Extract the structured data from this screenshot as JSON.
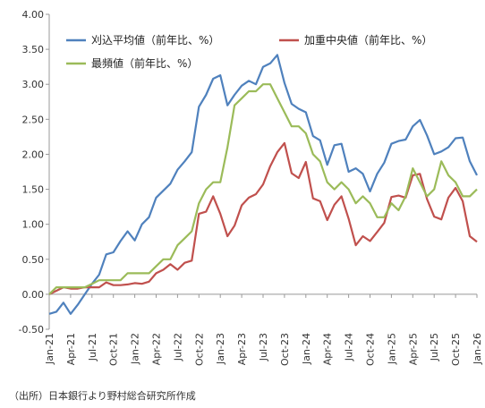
{
  "chart_data": {
    "type": "line",
    "x": [
      "Jan-21",
      "Feb-21",
      "Mar-21",
      "Apr-21",
      "May-21",
      "Jun-21",
      "Jul-21",
      "Aug-21",
      "Sep-21",
      "Oct-21",
      "Nov-21",
      "Dec-21",
      "Jan-22",
      "Feb-22",
      "Mar-22",
      "Apr-22",
      "May-22",
      "Jun-22",
      "Jul-22",
      "Aug-22",
      "Sep-22",
      "Oct-22",
      "Nov-22",
      "Dec-22",
      "Jan-23",
      "Feb-23",
      "Mar-23",
      "Apr-23",
      "May-23",
      "Jun-23",
      "Jul-23",
      "Aug-23",
      "Sep-23",
      "Oct-23",
      "Nov-23",
      "Dec-23",
      "Jan-24",
      "Feb-24",
      "Mar-24",
      "Apr-24",
      "May-24",
      "Jun-24",
      "Jul-24",
      "Aug-24",
      "Sep-24",
      "Oct-24",
      "Nov-24",
      "Dec-24",
      "Jan-25",
      "Feb-25",
      "Mar-25",
      "Apr-25",
      "May-25",
      "Jun-25",
      "Jul-25",
      "Aug-25",
      "Sep-25",
      "Oct-25",
      "Nov-25",
      "Dec-25",
      "Jan-26"
    ],
    "x_tick_labels": [
      "Jan-21",
      "Apr-21",
      "Jul-21",
      "Oct-21",
      "Jan-22",
      "Apr-22",
      "Jul-22",
      "Oct-22",
      "Jan-23",
      "Apr-23",
      "Jul-23",
      "Oct-23",
      "Jan-24",
      "Apr-24",
      "Jul-24",
      "Oct-24",
      "Jan-25",
      "Apr-25",
      "Jul-25",
      "Oct-25",
      "Jan-26"
    ],
    "ylim": [
      -0.5,
      4.0
    ],
    "y_ticks": [
      "-0.50",
      "0.00",
      "0.50",
      "1.00",
      "1.50",
      "2.00",
      "2.50",
      "3.00",
      "3.50",
      "4.00"
    ],
    "y_tick_values": [
      -0.5,
      0,
      0.5,
      1.0,
      1.5,
      2.0,
      2.5,
      3.0,
      3.5,
      4.0
    ],
    "grid": false,
    "legend_position": "top",
    "series": [
      {
        "name": "刈込平均値（前年比、%）",
        "color": "#4f81bd",
        "values": [
          -0.28,
          -0.25,
          -0.12,
          -0.28,
          -0.15,
          0.0,
          0.15,
          0.28,
          0.57,
          0.6,
          0.76,
          0.9,
          0.77,
          1.0,
          1.1,
          1.38,
          1.48,
          1.58,
          1.78,
          1.9,
          2.03,
          2.68,
          2.85,
          3.08,
          3.13,
          2.7,
          2.85,
          2.98,
          3.05,
          3.0,
          3.25,
          3.3,
          3.42,
          3.02,
          2.72,
          2.65,
          2.6,
          2.26,
          2.2,
          1.85,
          2.13,
          2.15,
          1.75,
          1.8,
          1.72,
          1.47,
          1.72,
          1.88,
          2.15,
          2.19,
          2.21,
          2.4,
          2.49,
          2.27,
          2.0,
          2.04,
          2.1,
          2.23,
          2.24,
          1.9,
          1.7
        ]
      },
      {
        "name": "加重中央値（前年比、%）",
        "color": "#c0504d",
        "values": [
          0.0,
          0.05,
          0.1,
          0.08,
          0.08,
          0.1,
          0.1,
          0.1,
          0.17,
          0.13,
          0.13,
          0.14,
          0.16,
          0.15,
          0.18,
          0.3,
          0.35,
          0.43,
          0.35,
          0.45,
          0.48,
          1.15,
          1.18,
          1.4,
          1.15,
          0.83,
          0.98,
          1.27,
          1.38,
          1.43,
          1.57,
          1.83,
          2.03,
          2.16,
          1.73,
          1.66,
          1.89,
          1.37,
          1.33,
          1.06,
          1.28,
          1.4,
          1.08,
          0.7,
          0.83,
          0.76,
          0.89,
          1.02,
          1.39,
          1.41,
          1.38,
          1.7,
          1.72,
          1.36,
          1.11,
          1.07,
          1.38,
          1.52,
          1.33,
          0.83,
          0.75
        ]
      },
      {
        "name": "最頻値（前年比、%）",
        "color": "#9bbb59",
        "values": [
          0.0,
          0.1,
          0.1,
          0.1,
          0.1,
          0.1,
          0.15,
          0.2,
          0.2,
          0.2,
          0.2,
          0.3,
          0.3,
          0.3,
          0.3,
          0.4,
          0.5,
          0.5,
          0.7,
          0.8,
          0.9,
          1.3,
          1.5,
          1.6,
          1.6,
          2.1,
          2.7,
          2.8,
          2.9,
          2.9,
          3.0,
          3.0,
          2.8,
          2.6,
          2.4,
          2.4,
          2.3,
          2.0,
          1.9,
          1.6,
          1.5,
          1.6,
          1.5,
          1.3,
          1.4,
          1.3,
          1.1,
          1.1,
          1.3,
          1.2,
          1.4,
          1.8,
          1.6,
          1.4,
          1.5,
          1.9,
          1.7,
          1.6,
          1.4,
          1.4,
          1.5
        ]
      }
    ]
  },
  "source_note": "（出所）日本銀行より野村総合研究所作成"
}
